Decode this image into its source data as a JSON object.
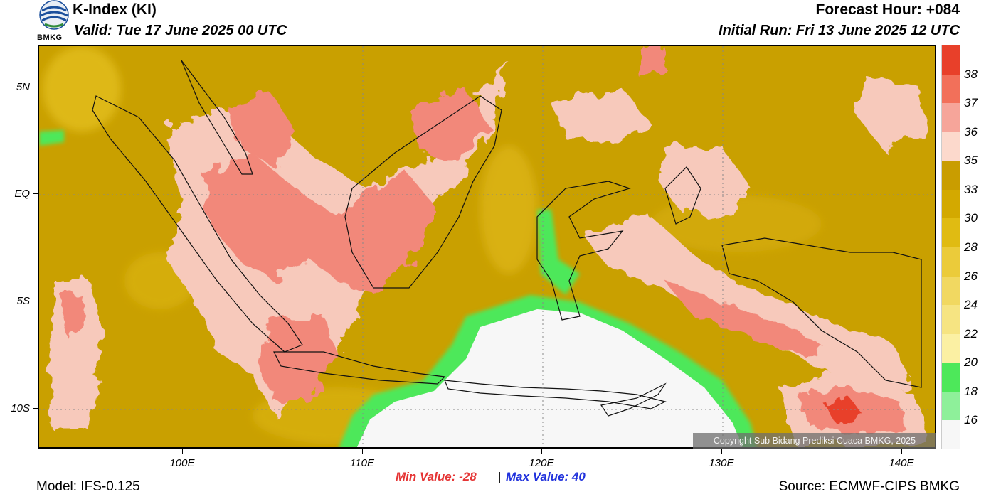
{
  "header": {
    "title": "K-Index (KI)",
    "valid": "Valid: Tue 17 June 2025 00 UTC",
    "forecast_hour": "Forecast Hour: +084",
    "initial_run": "Initial Run: Fri 13 June 2025 12 UTC",
    "logo_text": "BMKG"
  },
  "map": {
    "lat_labels": [
      "5N",
      "EQ",
      "5S",
      "10S"
    ],
    "lon_labels": [
      "100E",
      "110E",
      "120E",
      "130E",
      "140E"
    ],
    "copyright": "Copyright Sub Bidang Prediksi Cuaca BMKG, 2025"
  },
  "colorbar": {
    "labels": [
      "38",
      "37",
      "36",
      "35",
      "33",
      "30",
      "28",
      "26",
      "24",
      "22",
      "20",
      "18",
      "16"
    ],
    "colors": [
      "#e8402a",
      "#f2705a",
      "#f6a59a",
      "#fcd9cc",
      "#c99d00",
      "#d3a900",
      "#e0bb12",
      "#ebcb3a",
      "#f1d861",
      "#f6e482",
      "#fbf0a3",
      "#4de85a",
      "#8ef09a",
      "#f7f7f7"
    ]
  },
  "stats": {
    "min_label": "Min Value: -28",
    "separator": "|",
    "max_label": "Max Value:  40"
  },
  "footer": {
    "model": "Model: IFS-0.125",
    "source": "Source: ECMWF-CIPS BMKG"
  }
}
